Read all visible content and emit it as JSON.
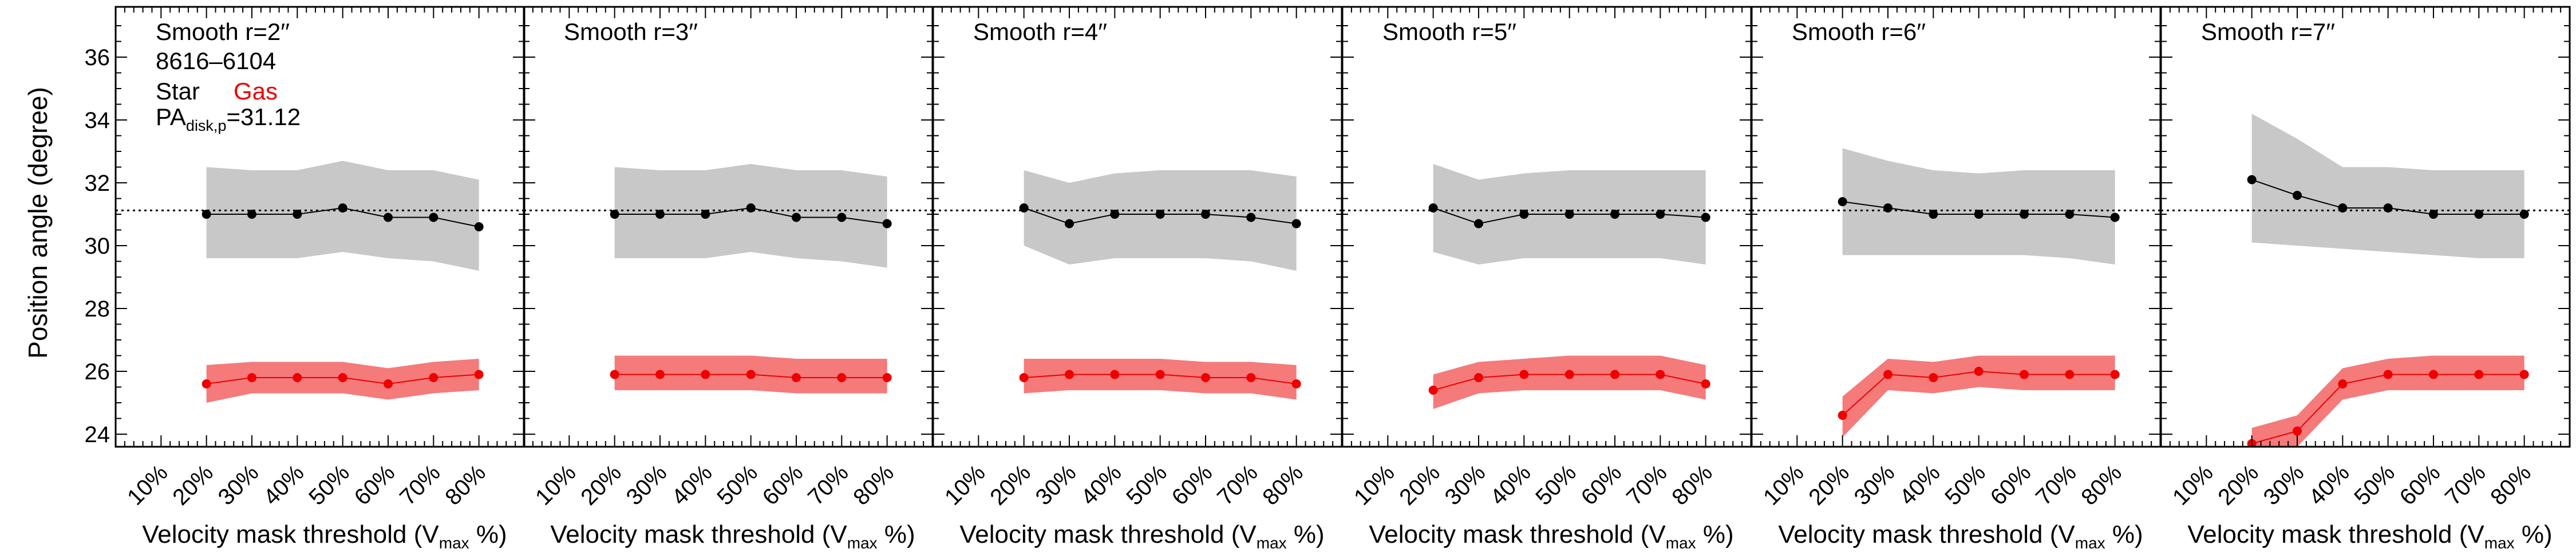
{
  "figure": {
    "ylabel": "Position angle (degree)",
    "xlabel_main": "Velocity mask threshold (V",
    "xlabel_sub": "max",
    "xlabel_tail": " %)",
    "annotation": {
      "galaxy_id": "8616–6104",
      "legend_star": "Star",
      "legend_gas": "Gas",
      "pa_main": "PA",
      "pa_sub": "disk,p",
      "pa_value": "=31.12"
    },
    "reference_line_value": 31.12
  },
  "colors": {
    "star_point": "#000000",
    "star_band": "#c8c8c8",
    "gas_point": "#ee0000",
    "gas_band": "#f57a7a",
    "gas_text": "#ee0000",
    "axis": "#000000"
  },
  "chart_data": [
    {
      "type": "line",
      "title": "Smooth r=2′′",
      "x": [
        20,
        30,
        40,
        50,
        60,
        70,
        80
      ],
      "series": [
        {
          "name": "Star",
          "values": [
            31.0,
            31.0,
            31.0,
            31.2,
            30.9,
            30.9,
            30.6
          ],
          "band_low": [
            29.6,
            29.6,
            29.6,
            29.8,
            29.6,
            29.5,
            29.2
          ],
          "band_high": [
            32.5,
            32.4,
            32.4,
            32.7,
            32.4,
            32.4,
            32.1
          ]
        },
        {
          "name": "Gas",
          "values": [
            25.6,
            25.8,
            25.8,
            25.8,
            25.6,
            25.8,
            25.9
          ],
          "band_low": [
            25.0,
            25.3,
            25.3,
            25.3,
            25.1,
            25.3,
            25.4
          ],
          "band_high": [
            26.2,
            26.3,
            26.3,
            26.3,
            26.1,
            26.3,
            26.4
          ]
        }
      ],
      "xlim": [
        0,
        90
      ],
      "ylim": [
        23.6,
        37.6
      ],
      "xticks": [
        "10%",
        "20%",
        "30%",
        "40%",
        "50%",
        "60%",
        "70%",
        "80%"
      ],
      "yticks": [
        "24",
        "26",
        "28",
        "30",
        "32",
        "34",
        "36"
      ]
    },
    {
      "type": "line",
      "title": "Smooth r=3′′",
      "x": [
        20,
        30,
        40,
        50,
        60,
        70,
        80
      ],
      "series": [
        {
          "name": "Star",
          "values": [
            31.0,
            31.0,
            31.0,
            31.2,
            30.9,
            30.9,
            30.7
          ],
          "band_low": [
            29.6,
            29.6,
            29.6,
            29.8,
            29.6,
            29.5,
            29.3
          ],
          "band_high": [
            32.5,
            32.4,
            32.4,
            32.6,
            32.4,
            32.4,
            32.2
          ]
        },
        {
          "name": "Gas",
          "values": [
            25.9,
            25.9,
            25.9,
            25.9,
            25.8,
            25.8,
            25.8
          ],
          "band_low": [
            25.4,
            25.4,
            25.4,
            25.4,
            25.3,
            25.3,
            25.3
          ],
          "band_high": [
            26.5,
            26.5,
            26.5,
            26.5,
            26.4,
            26.4,
            26.4
          ]
        }
      ],
      "xlim": [
        0,
        90
      ],
      "ylim": [
        23.6,
        37.6
      ],
      "xticks": [
        "10%",
        "20%",
        "30%",
        "40%",
        "50%",
        "60%",
        "70%",
        "80%"
      ],
      "yticks": [
        "24",
        "26",
        "28",
        "30",
        "32",
        "34",
        "36"
      ]
    },
    {
      "type": "line",
      "title": "Smooth r=4′′",
      "x": [
        20,
        30,
        40,
        50,
        60,
        70,
        80
      ],
      "series": [
        {
          "name": "Star",
          "values": [
            31.2,
            30.7,
            31.0,
            31.0,
            31.0,
            30.9,
            30.7
          ],
          "band_low": [
            30.0,
            29.4,
            29.6,
            29.6,
            29.6,
            29.5,
            29.2
          ],
          "band_high": [
            32.4,
            32.0,
            32.3,
            32.4,
            32.4,
            32.4,
            32.2
          ]
        },
        {
          "name": "Gas",
          "values": [
            25.8,
            25.9,
            25.9,
            25.9,
            25.8,
            25.8,
            25.6
          ],
          "band_low": [
            25.3,
            25.4,
            25.4,
            25.4,
            25.3,
            25.3,
            25.1
          ],
          "band_high": [
            26.4,
            26.4,
            26.4,
            26.4,
            26.3,
            26.3,
            26.2
          ]
        }
      ],
      "xlim": [
        0,
        90
      ],
      "ylim": [
        23.6,
        37.6
      ],
      "xticks": [
        "10%",
        "20%",
        "30%",
        "40%",
        "50%",
        "60%",
        "70%",
        "80%"
      ],
      "yticks": [
        "24",
        "26",
        "28",
        "30",
        "32",
        "34",
        "36"
      ]
    },
    {
      "type": "line",
      "title": "Smooth r=5′′",
      "x": [
        20,
        30,
        40,
        50,
        60,
        70,
        80
      ],
      "series": [
        {
          "name": "Star",
          "values": [
            31.2,
            30.7,
            31.0,
            31.0,
            31.0,
            31.0,
            30.9
          ],
          "band_low": [
            29.8,
            29.4,
            29.6,
            29.6,
            29.6,
            29.6,
            29.4
          ],
          "band_high": [
            32.6,
            32.1,
            32.3,
            32.4,
            32.4,
            32.4,
            32.4
          ]
        },
        {
          "name": "Gas",
          "values": [
            25.4,
            25.8,
            25.9,
            25.9,
            25.9,
            25.9,
            25.6
          ],
          "band_low": [
            24.8,
            25.3,
            25.4,
            25.4,
            25.4,
            25.4,
            25.1
          ],
          "band_high": [
            25.9,
            26.3,
            26.4,
            26.5,
            26.5,
            26.5,
            26.2
          ]
        }
      ],
      "xlim": [
        0,
        90
      ],
      "ylim": [
        23.6,
        37.6
      ],
      "xticks": [
        "10%",
        "20%",
        "30%",
        "40%",
        "50%",
        "60%",
        "70%",
        "80%"
      ],
      "yticks": [
        "24",
        "26",
        "28",
        "30",
        "32",
        "34",
        "36"
      ]
    },
    {
      "type": "line",
      "title": "Smooth r=6′′",
      "x": [
        20,
        30,
        40,
        50,
        60,
        70,
        80
      ],
      "series": [
        {
          "name": "Star",
          "values": [
            31.4,
            31.2,
            31.0,
            31.0,
            31.0,
            31.0,
            30.9
          ],
          "band_low": [
            29.7,
            29.7,
            29.7,
            29.7,
            29.7,
            29.6,
            29.4
          ],
          "band_high": [
            33.1,
            32.7,
            32.4,
            32.3,
            32.4,
            32.4,
            32.4
          ]
        },
        {
          "name": "Gas",
          "values": [
            24.6,
            25.9,
            25.8,
            26.0,
            25.9,
            25.9,
            25.9
          ],
          "band_low": [
            23.9,
            25.4,
            25.3,
            25.5,
            25.4,
            25.4,
            25.4
          ],
          "band_high": [
            25.2,
            26.4,
            26.3,
            26.5,
            26.5,
            26.5,
            26.5
          ]
        }
      ],
      "xlim": [
        0,
        90
      ],
      "ylim": [
        23.6,
        37.6
      ],
      "xticks": [
        "10%",
        "20%",
        "30%",
        "40%",
        "50%",
        "60%",
        "70%",
        "80%"
      ],
      "yticks": [
        "24",
        "26",
        "28",
        "30",
        "32",
        "34",
        "36"
      ]
    },
    {
      "type": "line",
      "title": "Smooth r=7′′",
      "x": [
        20,
        30,
        40,
        50,
        60,
        70,
        80
      ],
      "series": [
        {
          "name": "Star",
          "values": [
            32.1,
            31.6,
            31.2,
            31.2,
            31.0,
            31.0,
            31.0
          ],
          "band_low": [
            30.1,
            30.0,
            29.9,
            29.8,
            29.7,
            29.6,
            29.6
          ],
          "band_high": [
            34.2,
            33.4,
            32.5,
            32.5,
            32.4,
            32.4,
            32.4
          ]
        },
        {
          "name": "Gas",
          "values": [
            23.7,
            24.1,
            25.6,
            25.9,
            25.9,
            25.9,
            25.9
          ],
          "band_low": [
            23.6,
            23.6,
            25.1,
            25.4,
            25.4,
            25.4,
            25.4
          ],
          "band_high": [
            24.2,
            24.6,
            26.1,
            26.4,
            26.5,
            26.5,
            26.5
          ]
        }
      ],
      "xlim": [
        0,
        90
      ],
      "ylim": [
        23.6,
        37.6
      ],
      "xticks": [
        "10%",
        "20%",
        "30%",
        "40%",
        "50%",
        "60%",
        "70%",
        "80%"
      ],
      "yticks": [
        "24",
        "26",
        "28",
        "30",
        "32",
        "34",
        "36"
      ]
    }
  ]
}
